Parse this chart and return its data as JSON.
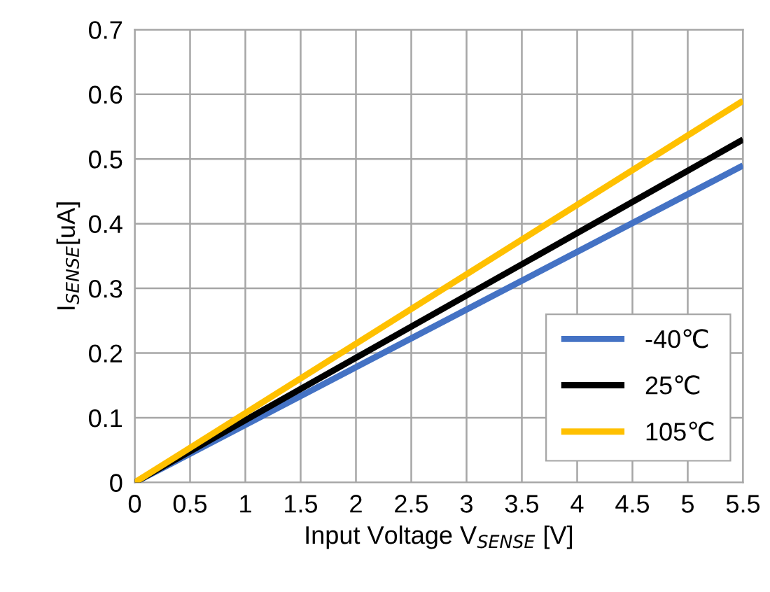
{
  "chart_data": {
    "type": "line",
    "xlabel": "Input Voltage V$_{SENSE}$ [V]",
    "ylabel": "I$_{SENSE}$[uA]",
    "x": [
      0,
      5.5
    ],
    "series": [
      {
        "name": "-40℃",
        "color": "#4472c4",
        "values": [
          0,
          0.49
        ]
      },
      {
        "name": "25℃",
        "color": "#000000",
        "values": [
          0,
          0.53
        ]
      },
      {
        "name": "105℃",
        "color": "#ffc000",
        "values": [
          0,
          0.59
        ]
      }
    ],
    "xlim": [
      0,
      5.5
    ],
    "xticks": [
      0,
      0.5,
      1,
      1.5,
      2,
      2.5,
      3,
      3.5,
      4,
      4.5,
      5,
      5.5
    ],
    "ylim": [
      0,
      0.7
    ],
    "yticks": [
      0,
      0.1,
      0.2,
      0.3,
      0.4,
      0.5,
      0.6,
      0.7
    ],
    "grid": true,
    "legend": "bottom right",
    "line_style": "solid",
    "marker": "none"
  }
}
